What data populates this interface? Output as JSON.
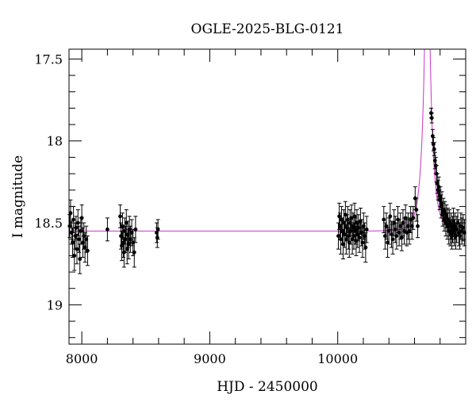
{
  "chart_data": {
    "type": "scatter",
    "title": "OGLE-2025-BLG-0121",
    "xlabel": "HJD - 2450000",
    "ylabel": "I magnitude",
    "xlim": [
      7900,
      11000
    ],
    "ylim": [
      19.24,
      17.44
    ],
    "y_inverted": true,
    "x_ticks": [
      8000,
      9000,
      10000
    ],
    "x_tick_labels": [
      "8000",
      "9000",
      "10000"
    ],
    "y_ticks": [
      17.5,
      18,
      18.5,
      19
    ],
    "y_tick_labels": [
      "17.5",
      "18",
      "18.5",
      "19"
    ],
    "grid": false,
    "colors": {
      "points": "#000000",
      "model": "#cc33cc"
    },
    "model": {
      "type": "microlensing",
      "baseline_mag": 18.55,
      "t0": 10700,
      "tE": 60,
      "u0": 0.0865
    },
    "points": [
      [
        7905,
        18.52,
        0.07
      ],
      [
        7912,
        18.44,
        0.08
      ],
      [
        7920,
        18.56,
        0.07
      ],
      [
        7928,
        18.62,
        0.09
      ],
      [
        7935,
        18.48,
        0.08
      ],
      [
        7942,
        18.7,
        0.09
      ],
      [
        7948,
        18.58,
        0.08
      ],
      [
        7955,
        18.53,
        0.07
      ],
      [
        7962,
        18.66,
        0.09
      ],
      [
        7970,
        18.5,
        0.08
      ],
      [
        7978,
        18.6,
        0.08
      ],
      [
        7985,
        18.72,
        0.09
      ],
      [
        7992,
        18.55,
        0.08
      ],
      [
        8000,
        18.47,
        0.08
      ],
      [
        8008,
        18.62,
        0.09
      ],
      [
        8016,
        18.58,
        0.08
      ],
      [
        8025,
        18.65,
        0.09
      ],
      [
        8035,
        18.6,
        0.08
      ],
      [
        8045,
        18.67,
        0.09
      ],
      [
        8200,
        18.54,
        0.07
      ],
      [
        8300,
        18.46,
        0.07
      ],
      [
        8306,
        18.58,
        0.08
      ],
      [
        8312,
        18.64,
        0.09
      ],
      [
        8318,
        18.52,
        0.08
      ],
      [
        8324,
        18.62,
        0.09
      ],
      [
        8330,
        18.68,
        0.09
      ],
      [
        8336,
        18.55,
        0.08
      ],
      [
        8342,
        18.6,
        0.08
      ],
      [
        8348,
        18.5,
        0.08
      ],
      [
        8354,
        18.66,
        0.09
      ],
      [
        8360,
        18.57,
        0.08
      ],
      [
        8366,
        18.63,
        0.09
      ],
      [
        8372,
        18.54,
        0.08
      ],
      [
        8380,
        18.6,
        0.08
      ],
      [
        8390,
        18.56,
        0.08
      ],
      [
        8400,
        18.62,
        0.08
      ],
      [
        8410,
        18.68,
        0.09
      ],
      [
        8420,
        18.54,
        0.08
      ],
      [
        8585,
        18.56,
        0.06
      ],
      [
        8590,
        18.59,
        0.06
      ],
      [
        8595,
        18.54,
        0.06
      ],
      [
        10005,
        18.58,
        0.08
      ],
      [
        10012,
        18.46,
        0.08
      ],
      [
        10018,
        18.52,
        0.08
      ],
      [
        10024,
        18.6,
        0.09
      ],
      [
        10030,
        18.48,
        0.08
      ],
      [
        10036,
        18.55,
        0.08
      ],
      [
        10042,
        18.63,
        0.09
      ],
      [
        10048,
        18.5,
        0.08
      ],
      [
        10054,
        18.57,
        0.08
      ],
      [
        10060,
        18.45,
        0.08
      ],
      [
        10066,
        18.6,
        0.09
      ],
      [
        10072,
        18.53,
        0.08
      ],
      [
        10078,
        18.48,
        0.08
      ],
      [
        10084,
        18.58,
        0.08
      ],
      [
        10090,
        18.62,
        0.09
      ],
      [
        10096,
        18.5,
        0.08
      ],
      [
        10102,
        18.55,
        0.08
      ],
      [
        10108,
        18.47,
        0.08
      ],
      [
        10114,
        18.6,
        0.09
      ],
      [
        10120,
        18.52,
        0.08
      ],
      [
        10126,
        18.58,
        0.08
      ],
      [
        10132,
        18.46,
        0.08
      ],
      [
        10138,
        18.55,
        0.08
      ],
      [
        10144,
        18.61,
        0.09
      ],
      [
        10150,
        18.5,
        0.08
      ],
      [
        10156,
        18.57,
        0.08
      ],
      [
        10162,
        18.53,
        0.08
      ],
      [
        10170,
        18.59,
        0.09
      ],
      [
        10178,
        18.49,
        0.08
      ],
      [
        10186,
        18.56,
        0.08
      ],
      [
        10194,
        18.62,
        0.09
      ],
      [
        10202,
        18.52,
        0.08
      ],
      [
        10210,
        18.58,
        0.08
      ],
      [
        10218,
        18.65,
        0.09
      ],
      [
        10226,
        18.54,
        0.08
      ],
      [
        10360,
        18.48,
        0.08
      ],
      [
        10370,
        18.58,
        0.08
      ],
      [
        10380,
        18.52,
        0.08
      ],
      [
        10390,
        18.62,
        0.09
      ],
      [
        10400,
        18.55,
        0.08
      ],
      [
        10410,
        18.46,
        0.08
      ],
      [
        10420,
        18.57,
        0.08
      ],
      [
        10430,
        18.6,
        0.09
      ],
      [
        10440,
        18.5,
        0.08
      ],
      [
        10450,
        18.54,
        0.08
      ],
      [
        10460,
        18.58,
        0.08
      ],
      [
        10470,
        18.48,
        0.08
      ],
      [
        10480,
        18.56,
        0.08
      ],
      [
        10490,
        18.52,
        0.08
      ],
      [
        10500,
        18.59,
        0.08
      ],
      [
        10510,
        18.5,
        0.08
      ],
      [
        10520,
        18.55,
        0.08
      ],
      [
        10530,
        18.47,
        0.08
      ],
      [
        10540,
        18.56,
        0.08
      ],
      [
        10550,
        18.52,
        0.08
      ],
      [
        10560,
        18.55,
        0.08
      ],
      [
        10570,
        18.48,
        0.08
      ],
      [
        10580,
        18.52,
        0.08
      ],
      [
        10590,
        18.47,
        0.07
      ],
      [
        10605,
        18.35,
        0.07
      ],
      [
        10615,
        18.42,
        0.07
      ],
      [
        10625,
        18.52,
        0.07
      ],
      [
        10730,
        17.83,
        0.03
      ],
      [
        10735,
        17.86,
        0.03
      ],
      [
        10742,
        17.97,
        0.04
      ],
      [
        10748,
        18.02,
        0.04
      ],
      [
        10754,
        18.05,
        0.04
      ],
      [
        10760,
        18.12,
        0.05
      ],
      [
        10766,
        18.15,
        0.05
      ],
      [
        10772,
        18.2,
        0.05
      ],
      [
        10778,
        18.26,
        0.06
      ],
      [
        10784,
        18.3,
        0.06
      ],
      [
        10790,
        18.28,
        0.06
      ],
      [
        10796,
        18.36,
        0.06
      ],
      [
        10802,
        18.34,
        0.06
      ],
      [
        10808,
        18.4,
        0.07
      ],
      [
        10814,
        18.38,
        0.07
      ],
      [
        10820,
        18.45,
        0.07
      ],
      [
        10826,
        18.42,
        0.07
      ],
      [
        10832,
        18.48,
        0.07
      ],
      [
        10838,
        18.44,
        0.07
      ],
      [
        10844,
        18.5,
        0.08
      ],
      [
        10850,
        18.46,
        0.07
      ],
      [
        10856,
        18.52,
        0.08
      ],
      [
        10862,
        18.48,
        0.07
      ],
      [
        10868,
        18.55,
        0.08
      ],
      [
        10874,
        18.5,
        0.08
      ],
      [
        10880,
        18.56,
        0.08
      ],
      [
        10886,
        18.52,
        0.08
      ],
      [
        10892,
        18.58,
        0.08
      ],
      [
        10898,
        18.54,
        0.08
      ],
      [
        10904,
        18.49,
        0.08
      ],
      [
        10910,
        18.56,
        0.08
      ],
      [
        10916,
        18.52,
        0.08
      ],
      [
        10922,
        18.58,
        0.08
      ],
      [
        10930,
        18.54,
        0.08
      ],
      [
        10938,
        18.5,
        0.08
      ],
      [
        10946,
        18.56,
        0.08
      ],
      [
        10954,
        18.58,
        0.08
      ],
      [
        10962,
        18.52,
        0.08
      ],
      [
        10970,
        18.55,
        0.08
      ],
      [
        10980,
        18.53,
        0.08
      ],
      [
        10990,
        18.56,
        0.08
      ]
    ]
  }
}
